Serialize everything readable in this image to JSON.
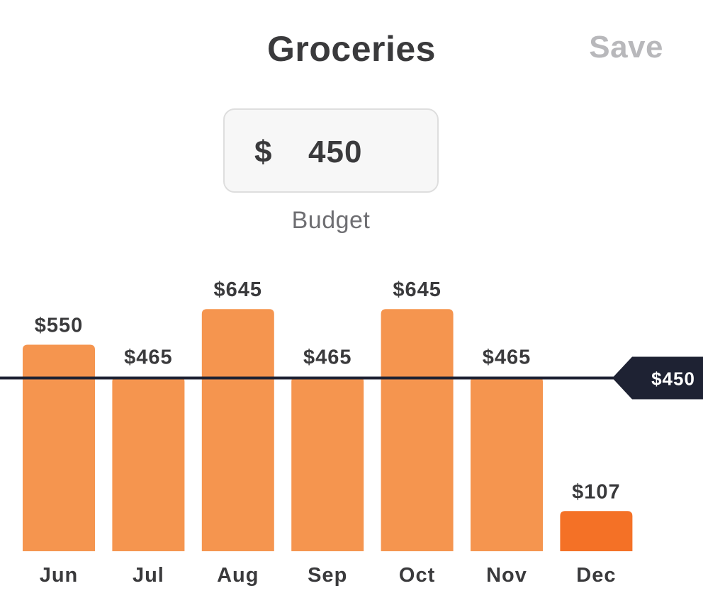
{
  "header": {
    "title": "Groceries",
    "save_label": "Save"
  },
  "budget_input": {
    "currency": "$",
    "value": "450",
    "label": "Budget"
  },
  "chart_data": {
    "type": "bar",
    "categories": [
      "Jun",
      "Jul",
      "Aug",
      "Sep",
      "Oct",
      "Nov",
      "Dec"
    ],
    "values": [
      550,
      465,
      645,
      465,
      645,
      465,
      107
    ],
    "value_labels": [
      "$550",
      "$465",
      "$645",
      "$465",
      "$645",
      "$465",
      "$107"
    ],
    "budget_line": {
      "value": 450,
      "label": "$450"
    },
    "colors": {
      "bar": "#f5954f",
      "bar_current": "#f47126",
      "budget_line": "#1e2233",
      "text": "#3a3a3c"
    },
    "highlight_index": 6
  }
}
